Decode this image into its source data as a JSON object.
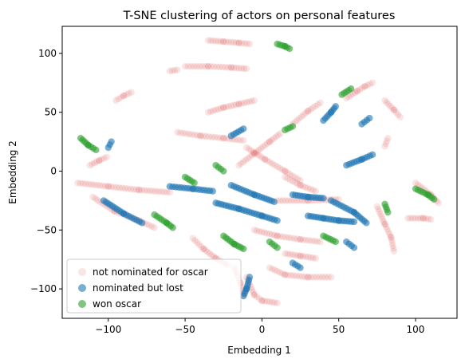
{
  "chart_data": {
    "type": "scatter",
    "title": "T-SNE clustering of actors on personal features",
    "xlabel": "Embedding 1",
    "ylabel": "Embedding 2",
    "xlim": [
      -130,
      127
    ],
    "ylim": [
      -125,
      123
    ],
    "xticks": [
      -100,
      -50,
      0,
      50,
      100
    ],
    "yticks": [
      -100,
      -50,
      0,
      50,
      100
    ],
    "grid": false,
    "legend_position": "lower-left",
    "series": [
      {
        "name": "not nominated for oscar",
        "color": "#d62728",
        "opacity": 0.12,
        "strands": [
          [
            [
              -35,
              111
            ],
            [
              -25,
              110
            ],
            [
              -15,
              109
            ],
            [
              -8,
              108
            ]
          ],
          [
            [
              -50,
              89
            ],
            [
              -35,
              89
            ],
            [
              -20,
              88
            ],
            [
              -10,
              87
            ]
          ],
          [
            [
              -60,
              85
            ],
            [
              -55,
              86
            ]
          ],
          [
            [
              -95,
              60
            ],
            [
              -90,
              64
            ],
            [
              -85,
              67
            ]
          ],
          [
            [
              -112,
              5
            ],
            [
              -106,
              9
            ],
            [
              -101,
              12
            ]
          ],
          [
            [
              -120,
              -10
            ],
            [
              -100,
              -13
            ],
            [
              -80,
              -16
            ],
            [
              -60,
              -18
            ]
          ],
          [
            [
              -110,
              -22
            ],
            [
              -96,
              -34
            ],
            [
              -80,
              -42
            ],
            [
              -70,
              -48
            ]
          ],
          [
            [
              -45,
              -57
            ],
            [
              -38,
              -66
            ],
            [
              -30,
              -74
            ],
            [
              -22,
              -80
            ]
          ],
          [
            [
              -18,
              -82
            ],
            [
              -14,
              -95
            ],
            [
              -12,
              -106
            ]
          ],
          [
            [
              -35,
              50
            ],
            [
              -25,
              54
            ],
            [
              -15,
              57
            ],
            [
              -5,
              60
            ]
          ],
          [
            [
              -55,
              33
            ],
            [
              -40,
              30
            ],
            [
              -25,
              28
            ],
            [
              -12,
              26
            ]
          ],
          [
            [
              -15,
              5
            ],
            [
              -5,
              15
            ],
            [
              5,
              25
            ],
            [
              12,
              32
            ]
          ],
          [
            [
              20,
              40
            ],
            [
              30,
              51
            ],
            [
              38,
              58
            ]
          ],
          [
            [
              55,
              62
            ],
            [
              62,
              68
            ],
            [
              67,
              72
            ],
            [
              72,
              75
            ]
          ],
          [
            [
              80,
              60
            ],
            [
              86,
              52
            ],
            [
              90,
              46
            ]
          ],
          [
            [
              80,
              21
            ],
            [
              82,
              28
            ]
          ],
          [
            [
              15,
              -5
            ],
            [
              25,
              -12
            ],
            [
              35,
              -17
            ]
          ],
          [
            [
              10,
              -25
            ],
            [
              30,
              -25
            ],
            [
              50,
              -24
            ]
          ],
          [
            [
              -5,
              -50
            ],
            [
              10,
              -55
            ],
            [
              25,
              -58
            ],
            [
              38,
              -60
            ]
          ],
          [
            [
              15,
              -70
            ],
            [
              25,
              -72
            ],
            [
              35,
              -74
            ]
          ],
          [
            [
              75,
              -30
            ],
            [
              80,
              -45
            ],
            [
              84,
              -56
            ],
            [
              86,
              -68
            ]
          ],
          [
            [
              95,
              -40
            ],
            [
              105,
              -40
            ],
            [
              110,
              -41
            ]
          ],
          [
            [
              100,
              -10
            ],
            [
              110,
              -20
            ],
            [
              115,
              -27
            ]
          ],
          [
            [
              5,
              -82
            ],
            [
              15,
              -88
            ],
            [
              30,
              -90
            ],
            [
              45,
              -90
            ]
          ],
          [
            [
              -10,
              -90
            ],
            [
              -5,
              -105
            ],
            [
              0,
              -110
            ],
            [
              10,
              -112
            ]
          ],
          [
            [
              -10,
              20
            ],
            [
              2,
              10
            ],
            [
              15,
              0
            ],
            [
              25,
              -8
            ]
          ]
        ]
      },
      {
        "name": "nominated but lost",
        "color": "#1f77b4",
        "opacity": 0.6,
        "strands": [
          [
            [
              -103,
              -25
            ],
            [
              -90,
              -36
            ],
            [
              -78,
              -44
            ]
          ],
          [
            [
              -60,
              -13
            ],
            [
              -45,
              -15
            ],
            [
              -32,
              -17
            ]
          ],
          [
            [
              -30,
              -27
            ],
            [
              -15,
              -32
            ],
            [
              0,
              -38
            ],
            [
              10,
              -42
            ]
          ],
          [
            [
              20,
              -20
            ],
            [
              30,
              -22
            ],
            [
              40,
              -23
            ]
          ],
          [
            [
              30,
              -38
            ],
            [
              40,
              -40
            ],
            [
              50,
              -42
            ],
            [
              60,
              -43
            ]
          ],
          [
            [
              45,
              -25
            ],
            [
              60,
              -35
            ],
            [
              68,
              -44
            ]
          ],
          [
            [
              40,
              43
            ],
            [
              45,
              50
            ],
            [
              48,
              55
            ]
          ],
          [
            [
              65,
              40
            ],
            [
              70,
              45
            ]
          ],
          [
            [
              -20,
              -12
            ],
            [
              -5,
              -20
            ],
            [
              8,
              -26
            ]
          ],
          [
            [
              20,
              -78
            ],
            [
              25,
              -82
            ]
          ],
          [
            [
              -8,
              -90
            ],
            [
              -10,
              -100
            ],
            [
              -12,
              -106
            ]
          ],
          [
            [
              55,
              -60
            ],
            [
              60,
              -65
            ]
          ],
          [
            [
              -100,
              20
            ],
            [
              -98,
              25
            ]
          ],
          [
            [
              55,
              5
            ],
            [
              65,
              10
            ],
            [
              72,
              14
            ]
          ],
          [
            [
              -20,
              30
            ],
            [
              -12,
              36
            ]
          ]
        ]
      },
      {
        "name": "won oscar",
        "color": "#2ca02c",
        "opacity": 0.6,
        "strands": [
          [
            [
              -118,
              28
            ],
            [
              -113,
              22
            ],
            [
              -108,
              18
            ]
          ],
          [
            [
              -70,
              -37
            ],
            [
              -62,
              -44
            ],
            [
              -58,
              -48
            ]
          ],
          [
            [
              -25,
              -55
            ],
            [
              -18,
              -62
            ],
            [
              -12,
              -66
            ]
          ],
          [
            [
              5,
              -60
            ],
            [
              10,
              -65
            ]
          ],
          [
            [
              40,
              -55
            ],
            [
              48,
              -60
            ]
          ],
          [
            [
              80,
              -28
            ],
            [
              82,
              -35
            ]
          ],
          [
            [
              100,
              -15
            ],
            [
              108,
              -20
            ],
            [
              112,
              -24
            ]
          ],
          [
            [
              10,
              108
            ],
            [
              15,
              106
            ],
            [
              18,
              104
            ]
          ],
          [
            [
              -50,
              -5
            ],
            [
              -44,
              -10
            ]
          ],
          [
            [
              52,
              65
            ],
            [
              58,
              70
            ]
          ],
          [
            [
              -30,
              5
            ],
            [
              -25,
              0
            ]
          ],
          [
            [
              15,
              35
            ],
            [
              20,
              38
            ]
          ]
        ]
      }
    ]
  }
}
